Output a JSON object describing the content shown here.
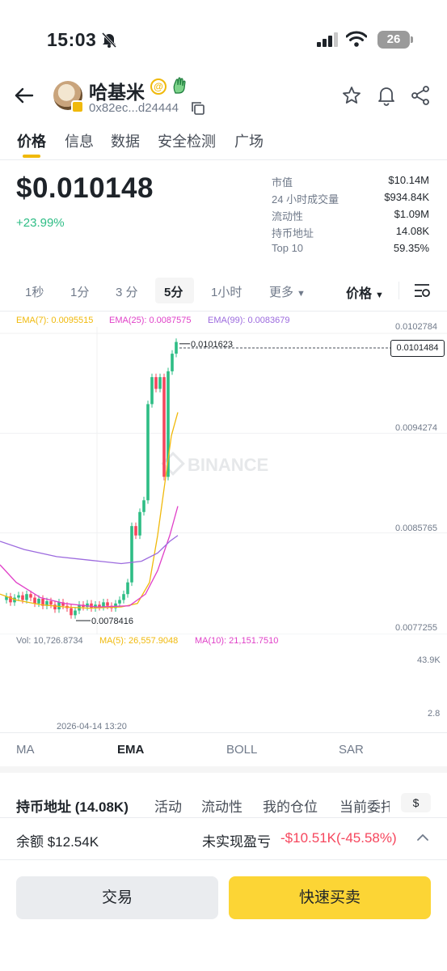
{
  "status_bar": {
    "time": "15:03",
    "battery": "26"
  },
  "header": {
    "token_name": "哈基米",
    "address": "0x82ec...d24444",
    "badge_symbol": "@"
  },
  "tabs": [
    {
      "label": "价格",
      "active": true
    },
    {
      "label": "信息",
      "active": false
    },
    {
      "label": "数据",
      "active": false
    },
    {
      "label": "安全检测",
      "active": false
    },
    {
      "label": "广场",
      "active": false
    }
  ],
  "price": {
    "value": "$0.010148",
    "change": "+23.99%",
    "change_color": "#2ebd85"
  },
  "stats": [
    {
      "label": "市值",
      "value": "$10.14M"
    },
    {
      "label": "24 小时成交量",
      "value": "$934.84K"
    },
    {
      "label": "流动性",
      "value": "$1.09M"
    },
    {
      "label": "持币地址",
      "value": "14.08K"
    },
    {
      "label": "Top 10",
      "value": "59.35%"
    }
  ],
  "intervals": [
    {
      "label": "1秒",
      "active": false
    },
    {
      "label": "1分",
      "active": false
    },
    {
      "label": "3 分",
      "active": false
    },
    {
      "label": "5分",
      "active": true
    },
    {
      "label": "1小时",
      "active": false
    },
    {
      "label": "更多",
      "active": false
    }
  ],
  "price_select": "价格",
  "chart_legend": {
    "ema7": "EMA(7): 0.0095515",
    "ema25": "EMA(25): 0.0087575",
    "ema99": "EMA(99): 0.0083679",
    "vol": "Vol: 10,726.8734",
    "ma5": "MA(5): 26,557.9048",
    "ma10": "MA(10): 21,151.7510"
  },
  "chart_data": {
    "type": "candlestick",
    "y_axis_labels": [
      "0.0102784",
      "0.0094274",
      "0.0085765",
      "0.0077255"
    ],
    "ylim": [
      0.0077255,
      0.0102784
    ],
    "current_price": "0.0101484",
    "high_marker": "0.0101623",
    "low_marker": "0.0078416",
    "volume_axis_labels": [
      "43.9K",
      "2.8"
    ],
    "time_label": "2026-04-14 13:20",
    "watermark": "BINANCE",
    "colors": {
      "up": "#2ebd85",
      "down": "#f6465d",
      "ema7": "#f0b90b",
      "ema25": "#e040c8",
      "ema99": "#9c6ade"
    }
  },
  "indicator_tabs": [
    {
      "label": "MA",
      "active": false
    },
    {
      "label": "EMA",
      "active": true
    },
    {
      "label": "BOLL",
      "active": false
    },
    {
      "label": "SAR",
      "active": false
    }
  ],
  "holder_tabs": [
    "持币地址 (14.08K)",
    "活动",
    "流动性",
    "我的仓位",
    "当前委托"
  ],
  "currency_toggle": "$",
  "position": {
    "balance": "余额 $12.54K",
    "pnl_label": "未实现盈亏",
    "pnl_value": "-$10.51K(-45.58%)"
  },
  "buttons": {
    "trade": "交易",
    "quick": "快速买卖"
  }
}
